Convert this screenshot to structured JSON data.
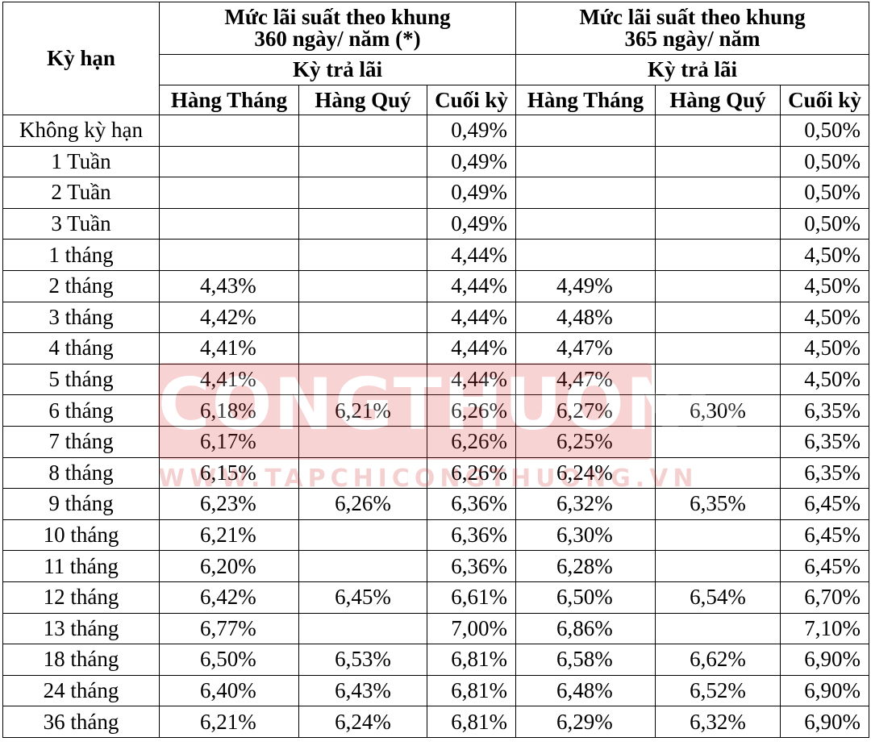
{
  "header": {
    "term": "Kỳ hạn",
    "group360_line1": "Mức lãi suất theo khung",
    "group360_line2": "360 ngày/ năm (*)",
    "group365_line1": "Mức lãi suất theo khung",
    "group365_line2": "365 ngày/ năm",
    "payment_360": "Kỳ trả lãi",
    "payment_365": "Kỳ trả lãi",
    "cols": [
      "Hàng Tháng",
      "Hàng Quý",
      "Cuối kỳ",
      "Hàng Tháng",
      "Hàng Quý",
      "Cuối kỳ"
    ]
  },
  "rows": [
    {
      "term": "Không kỳ hạn",
      "m360": "",
      "q360": "",
      "e360": "0,49%",
      "m365": "",
      "q365": "",
      "e365": "0,50%"
    },
    {
      "term": "1 Tuần",
      "m360": "",
      "q360": "",
      "e360": "0,49%",
      "m365": "",
      "q365": "",
      "e365": "0,50%"
    },
    {
      "term": "2 Tuần",
      "m360": "",
      "q360": "",
      "e360": "0,49%",
      "m365": "",
      "q365": "",
      "e365": "0,50%"
    },
    {
      "term": "3 Tuần",
      "m360": "",
      "q360": "",
      "e360": "0,49%",
      "m365": "",
      "q365": "",
      "e365": "0,50%"
    },
    {
      "term": "1 tháng",
      "m360": "",
      "q360": "",
      "e360": "4,44%",
      "m365": "",
      "q365": "",
      "e365": "4,50%"
    },
    {
      "term": "2 tháng",
      "m360": "4,43%",
      "q360": "",
      "e360": "4,44%",
      "m365": "4,49%",
      "q365": "",
      "e365": "4,50%"
    },
    {
      "term": "3 tháng",
      "m360": "4,42%",
      "q360": "",
      "e360": "4,44%",
      "m365": "4,48%",
      "q365": "",
      "e365": "4,50%"
    },
    {
      "term": "4 tháng",
      "m360": "4,41%",
      "q360": "",
      "e360": "4,44%",
      "m365": "4,47%",
      "q365": "",
      "e365": "4,50%"
    },
    {
      "term": "5 tháng",
      "m360": "4,41%",
      "q360": "",
      "e360": "4,44%",
      "m365": "4,47%",
      "q365": "",
      "e365": "4,50%"
    },
    {
      "term": "6 tháng",
      "m360": "6,18%",
      "q360": "6,21%",
      "e360": "6,26%",
      "m365": "6,27%",
      "q365": "6,30%",
      "e365": "6,35%"
    },
    {
      "term": "7 tháng",
      "m360": "6,17%",
      "q360": "",
      "e360": "6,26%",
      "m365": "6,25%",
      "q365": "",
      "e365": "6,35%"
    },
    {
      "term": "8 tháng",
      "m360": "6,15%",
      "q360": "",
      "e360": "6,26%",
      "m365": "6,24%",
      "q365": "",
      "e365": "6,35%"
    },
    {
      "term": "9 tháng",
      "m360": "6,23%",
      "q360": "6,26%",
      "e360": "6,36%",
      "m365": "6,32%",
      "q365": "6,35%",
      "e365": "6,45%"
    },
    {
      "term": "10 tháng",
      "m360": "6,21%",
      "q360": "",
      "e360": "6,36%",
      "m365": "6,30%",
      "q365": "",
      "e365": "6,45%"
    },
    {
      "term": "11 tháng",
      "m360": "6,20%",
      "q360": "",
      "e360": "6,36%",
      "m365": "6,28%",
      "q365": "",
      "e365": "6,45%"
    },
    {
      "term": "12 tháng",
      "m360": "6,42%",
      "q360": "6,45%",
      "e360": "6,61%",
      "m365": "6,50%",
      "q365": "6,54%",
      "e365": "6,70%"
    },
    {
      "term": "13 tháng",
      "m360": "6,77%",
      "q360": "",
      "e360": "7,00%",
      "m365": "6,86%",
      "q365": "",
      "e365": "7,10%"
    },
    {
      "term": "18 tháng",
      "m360": "6,50%",
      "q360": "6,53%",
      "e360": "6,81%",
      "m365": "6,58%",
      "q365": "6,62%",
      "e365": "6,90%"
    },
    {
      "term": "24 tháng",
      "m360": "6,40%",
      "q360": "6,43%",
      "e360": "6,81%",
      "m365": "6,48%",
      "q365": "6,52%",
      "e365": "6,90%"
    },
    {
      "term": "36 tháng",
      "m360": "6,21%",
      "q360": "6,24%",
      "e360": "6,81%",
      "m365": "6,29%",
      "q365": "6,32%",
      "e365": "6,90%"
    }
  ],
  "watermark": {
    "main": "CONGTHUONG",
    "url": "WWW.TAPCHICONGTHUONG.VN",
    "color": "#e23b3b"
  }
}
